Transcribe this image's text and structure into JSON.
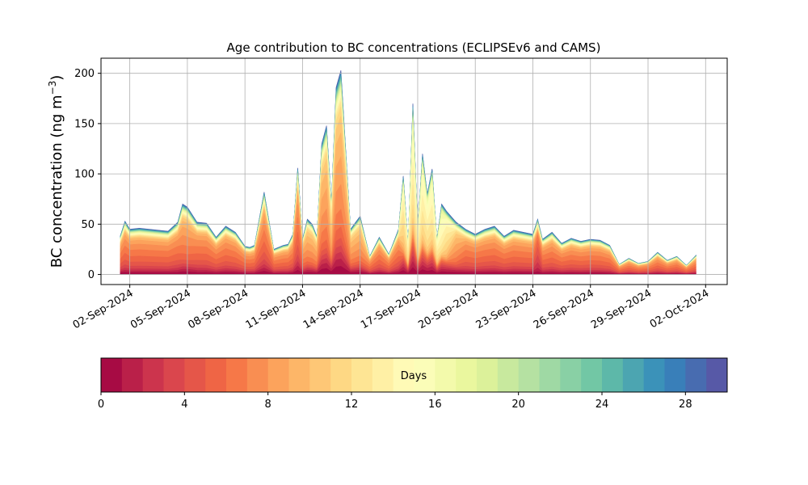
{
  "chart_data": [
    {
      "type": "area",
      "stacked": true,
      "title": "Age contribution to BC concentrations (ECLIPSEv6 and CAMS)",
      "xlabel": "",
      "ylabel": "BC concentration (ng m",
      "ylabel_superscript": "−3",
      "ylabel_close": ")",
      "ylim": [
        -10,
        215
      ],
      "xlim": [
        "2024-08-31T12:00",
        "2024-10-03T03:00"
      ],
      "yticks": [
        0,
        50,
        100,
        150,
        200
      ],
      "xticks": [
        "2024-09-02",
        "2024-09-05",
        "2024-09-08",
        "2024-09-11",
        "2024-09-14",
        "2024-09-17",
        "2024-09-20",
        "2024-09-23",
        "2024-09-26",
        "2024-09-29",
        "2024-10-02"
      ],
      "xtick_labels": [
        "02-Sep-2024",
        "05-Sep-2024",
        "08-Sep-2024",
        "11-Sep-2024",
        "14-Sep-2024",
        "17-Sep-2024",
        "20-Sep-2024",
        "23-Sep-2024",
        "26-Sep-2024",
        "29-Sep-2024",
        "02-Oct-2024"
      ],
      "grid": true,
      "series_count": 30,
      "x": [
        "2024-09-01T12:00",
        "2024-09-01T18:00",
        "2024-09-02T00:00",
        "2024-09-02T12:00",
        "2024-09-03T00:00",
        "2024-09-03T12:00",
        "2024-09-04T00:00",
        "2024-09-04T12:00",
        "2024-09-04T18:00",
        "2024-09-05T00:00",
        "2024-09-05T12:00",
        "2024-09-06T00:00",
        "2024-09-06T12:00",
        "2024-09-07T00:00",
        "2024-09-07T12:00",
        "2024-09-08T00:00",
        "2024-09-08T06:00",
        "2024-09-08T12:00",
        "2024-09-09T00:00",
        "2024-09-09T12:00",
        "2024-09-10T00:00",
        "2024-09-10T06:00",
        "2024-09-10T12:00",
        "2024-09-10T18:00",
        "2024-09-11T00:00",
        "2024-09-11T06:00",
        "2024-09-11T12:00",
        "2024-09-11T18:00",
        "2024-09-12T00:00",
        "2024-09-12T06:00",
        "2024-09-12T12:00",
        "2024-09-12T18:00",
        "2024-09-13T00:00",
        "2024-09-13T12:00",
        "2024-09-14T00:00",
        "2024-09-14T12:00",
        "2024-09-15T00:00",
        "2024-09-15T12:00",
        "2024-09-16T00:00",
        "2024-09-16T06:00",
        "2024-09-16T12:00",
        "2024-09-16T18:00",
        "2024-09-17T00:00",
        "2024-09-17T06:00",
        "2024-09-17T12:00",
        "2024-09-17T18:00",
        "2024-09-18T00:00",
        "2024-09-18T06:00",
        "2024-09-18T12:00",
        "2024-09-19T00:00",
        "2024-09-19T12:00",
        "2024-09-20T00:00",
        "2024-09-20T12:00",
        "2024-09-21T00:00",
        "2024-09-21T12:00",
        "2024-09-22T00:00",
        "2024-09-22T12:00",
        "2024-09-23T00:00",
        "2024-09-23T06:00",
        "2024-09-23T12:00",
        "2024-09-24T00:00",
        "2024-09-24T12:00",
        "2024-09-25T00:00",
        "2024-09-25T12:00",
        "2024-09-26T00:00",
        "2024-09-26T12:00",
        "2024-09-27T00:00",
        "2024-09-27T12:00",
        "2024-09-28T00:00",
        "2024-09-28T12:00",
        "2024-09-29T00:00",
        "2024-09-29T12:00",
        "2024-09-30T00:00",
        "2024-09-30T12:00",
        "2024-10-01T00:00",
        "2024-10-01T12:00"
      ],
      "total": [
        38,
        53,
        45,
        46,
        45,
        44,
        43,
        52,
        70,
        67,
        52,
        51,
        37,
        48,
        42,
        28,
        27,
        29,
        82,
        25,
        29,
        30,
        40,
        106,
        35,
        55,
        50,
        38,
        130,
        148,
        70,
        186,
        203,
        45,
        58,
        18,
        37,
        20,
        45,
        98,
        30,
        170,
        45,
        120,
        80,
        105,
        35,
        70,
        63,
        52,
        45,
        40,
        45,
        48,
        38,
        44,
        42,
        40,
        55,
        35,
        42,
        31,
        36,
        33,
        35,
        34,
        29,
        10,
        16,
        11,
        13,
        22,
        14,
        18,
        9,
        19
      ],
      "peak_age_days": [
        6,
        6,
        6,
        6,
        6,
        6,
        6,
        6,
        7,
        7,
        6,
        6,
        6,
        6,
        6,
        6,
        6,
        6,
        6,
        6,
        6,
        6,
        6,
        6,
        7,
        8,
        8,
        8,
        8,
        8,
        10,
        8,
        8,
        8,
        8,
        6,
        6,
        6,
        6,
        12,
        12,
        13,
        13,
        13,
        13,
        13,
        12,
        14,
        12,
        8,
        6,
        6,
        6,
        6,
        6,
        6,
        6,
        6,
        4,
        6,
        6,
        6,
        6,
        6,
        6,
        6,
        6,
        6,
        6,
        6,
        6,
        6,
        6,
        6,
        6,
        6
      ]
    },
    {
      "type": "colorbar",
      "label": "Days",
      "range": [
        0,
        30
      ],
      "bins": 30,
      "colormap": "Spectral",
      "ticks": [
        0,
        4,
        8,
        12,
        16,
        20,
        24,
        28
      ],
      "tick_labels": [
        "0",
        "4",
        "8",
        "12",
        "16",
        "20",
        "24",
        "28"
      ]
    }
  ]
}
